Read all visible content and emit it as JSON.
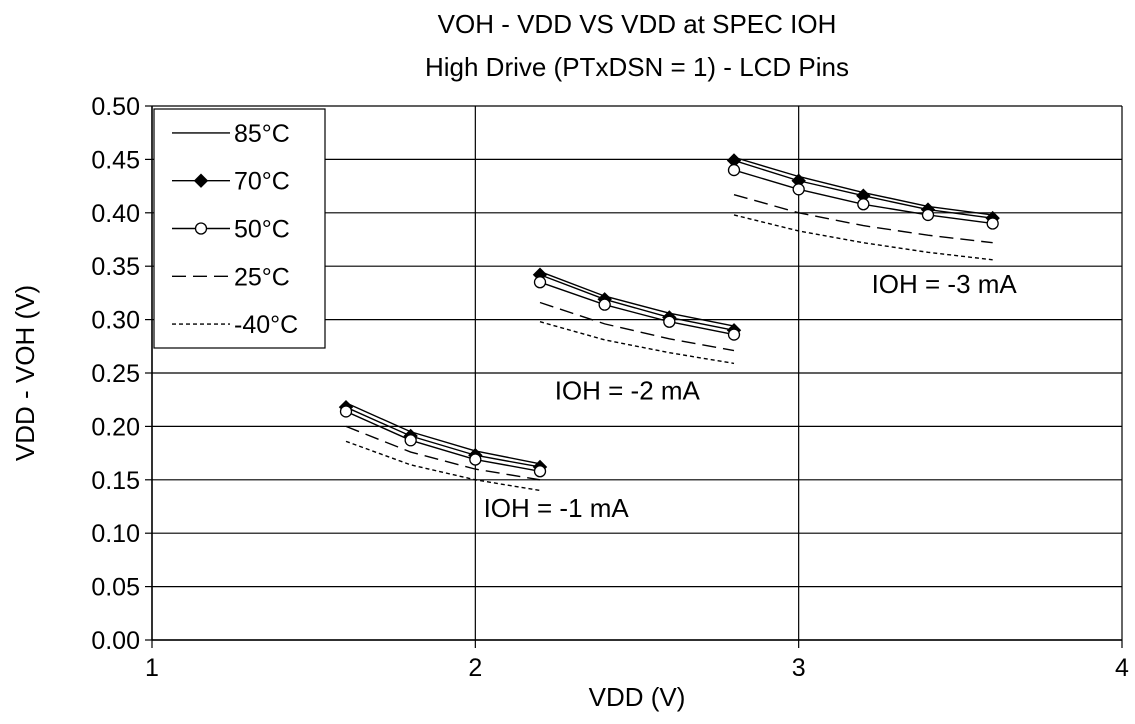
{
  "chart_data": {
    "type": "line",
    "title": "VOH - VDD VS VDD at SPEC IOH",
    "subtitle": "High Drive (PTxDSN = 1) - LCD Pins",
    "xlabel": "VDD (V)",
    "ylabel": "VDD - VOH (V)",
    "xlim": [
      1,
      4
    ],
    "ylim": [
      0,
      0.5
    ],
    "xticks": [
      "1",
      "2",
      "3",
      "4"
    ],
    "yticks": [
      "0.00",
      "0.05",
      "0.10",
      "0.15",
      "0.20",
      "0.25",
      "0.30",
      "0.35",
      "0.40",
      "0.45",
      "0.50"
    ],
    "grid": true,
    "legend_position": "top-left",
    "series": [
      {
        "name": "85°C",
        "marker": "none",
        "line": "solid",
        "groups": [
          {
            "x": [
              1.6,
              1.8,
              2.0,
              2.2
            ],
            "y": [
              0.222,
              0.195,
              0.177,
              0.165
            ]
          },
          {
            "x": [
              2.2,
              2.4,
              2.6,
              2.8
            ],
            "y": [
              0.345,
              0.322,
              0.306,
              0.294
            ]
          },
          {
            "x": [
              2.8,
              3.0,
              3.2,
              3.4,
              3.6
            ],
            "y": [
              0.452,
              0.434,
              0.419,
              0.406,
              0.398
            ]
          }
        ]
      },
      {
        "name": "70°C",
        "marker": "filled-diamond",
        "line": "solid",
        "groups": [
          {
            "x": [
              1.6,
              1.8,
              2.0,
              2.2
            ],
            "y": [
              0.218,
              0.191,
              0.173,
              0.162
            ]
          },
          {
            "x": [
              2.2,
              2.4,
              2.6,
              2.8
            ],
            "y": [
              0.342,
              0.319,
              0.302,
              0.29
            ]
          },
          {
            "x": [
              2.8,
              3.0,
              3.2,
              3.4,
              3.6
            ],
            "y": [
              0.449,
              0.43,
              0.416,
              0.403,
              0.395
            ]
          }
        ]
      },
      {
        "name": "50°C",
        "marker": "open-circle",
        "line": "solid",
        "groups": [
          {
            "x": [
              1.6,
              1.8,
              2.0,
              2.2
            ],
            "y": [
              0.214,
              0.187,
              0.169,
              0.158
            ]
          },
          {
            "x": [
              2.2,
              2.4,
              2.6,
              2.8
            ],
            "y": [
              0.335,
              0.314,
              0.298,
              0.286
            ]
          },
          {
            "x": [
              2.8,
              3.0,
              3.2,
              3.4,
              3.6
            ],
            "y": [
              0.44,
              0.422,
              0.408,
              0.398,
              0.39
            ]
          }
        ]
      },
      {
        "name": "25°C",
        "marker": "none",
        "line": "dashed",
        "groups": [
          {
            "x": [
              1.6,
              1.8,
              2.0,
              2.2
            ],
            "y": [
              0.2,
              0.176,
              0.16,
              0.15
            ]
          },
          {
            "x": [
              2.2,
              2.4,
              2.6,
              2.8
            ],
            "y": [
              0.316,
              0.296,
              0.282,
              0.271
            ]
          },
          {
            "x": [
              2.8,
              3.0,
              3.2,
              3.4,
              3.6
            ],
            "y": [
              0.417,
              0.4,
              0.388,
              0.379,
              0.372
            ]
          }
        ]
      },
      {
        "name": "-40°C",
        "marker": "none",
        "line": "dotted",
        "groups": [
          {
            "x": [
              1.6,
              1.8,
              2.0,
              2.2
            ],
            "y": [
              0.186,
              0.164,
              0.15,
              0.14
            ]
          },
          {
            "x": [
              2.2,
              2.4,
              2.6,
              2.8
            ],
            "y": [
              0.298,
              0.281,
              0.269,
              0.259
            ]
          },
          {
            "x": [
              2.8,
              3.0,
              3.2,
              3.4,
              3.6
            ],
            "y": [
              0.398,
              0.383,
              0.372,
              0.363,
              0.356
            ]
          }
        ]
      }
    ],
    "annotations": [
      {
        "text": "IOH = -1 mA",
        "x": 2.25,
        "y": 0.115
      },
      {
        "text": "IOH = -2 mA",
        "x": 2.47,
        "y": 0.225
      },
      {
        "text": "IOH = -3 mA",
        "x": 3.45,
        "y": 0.325
      }
    ]
  }
}
